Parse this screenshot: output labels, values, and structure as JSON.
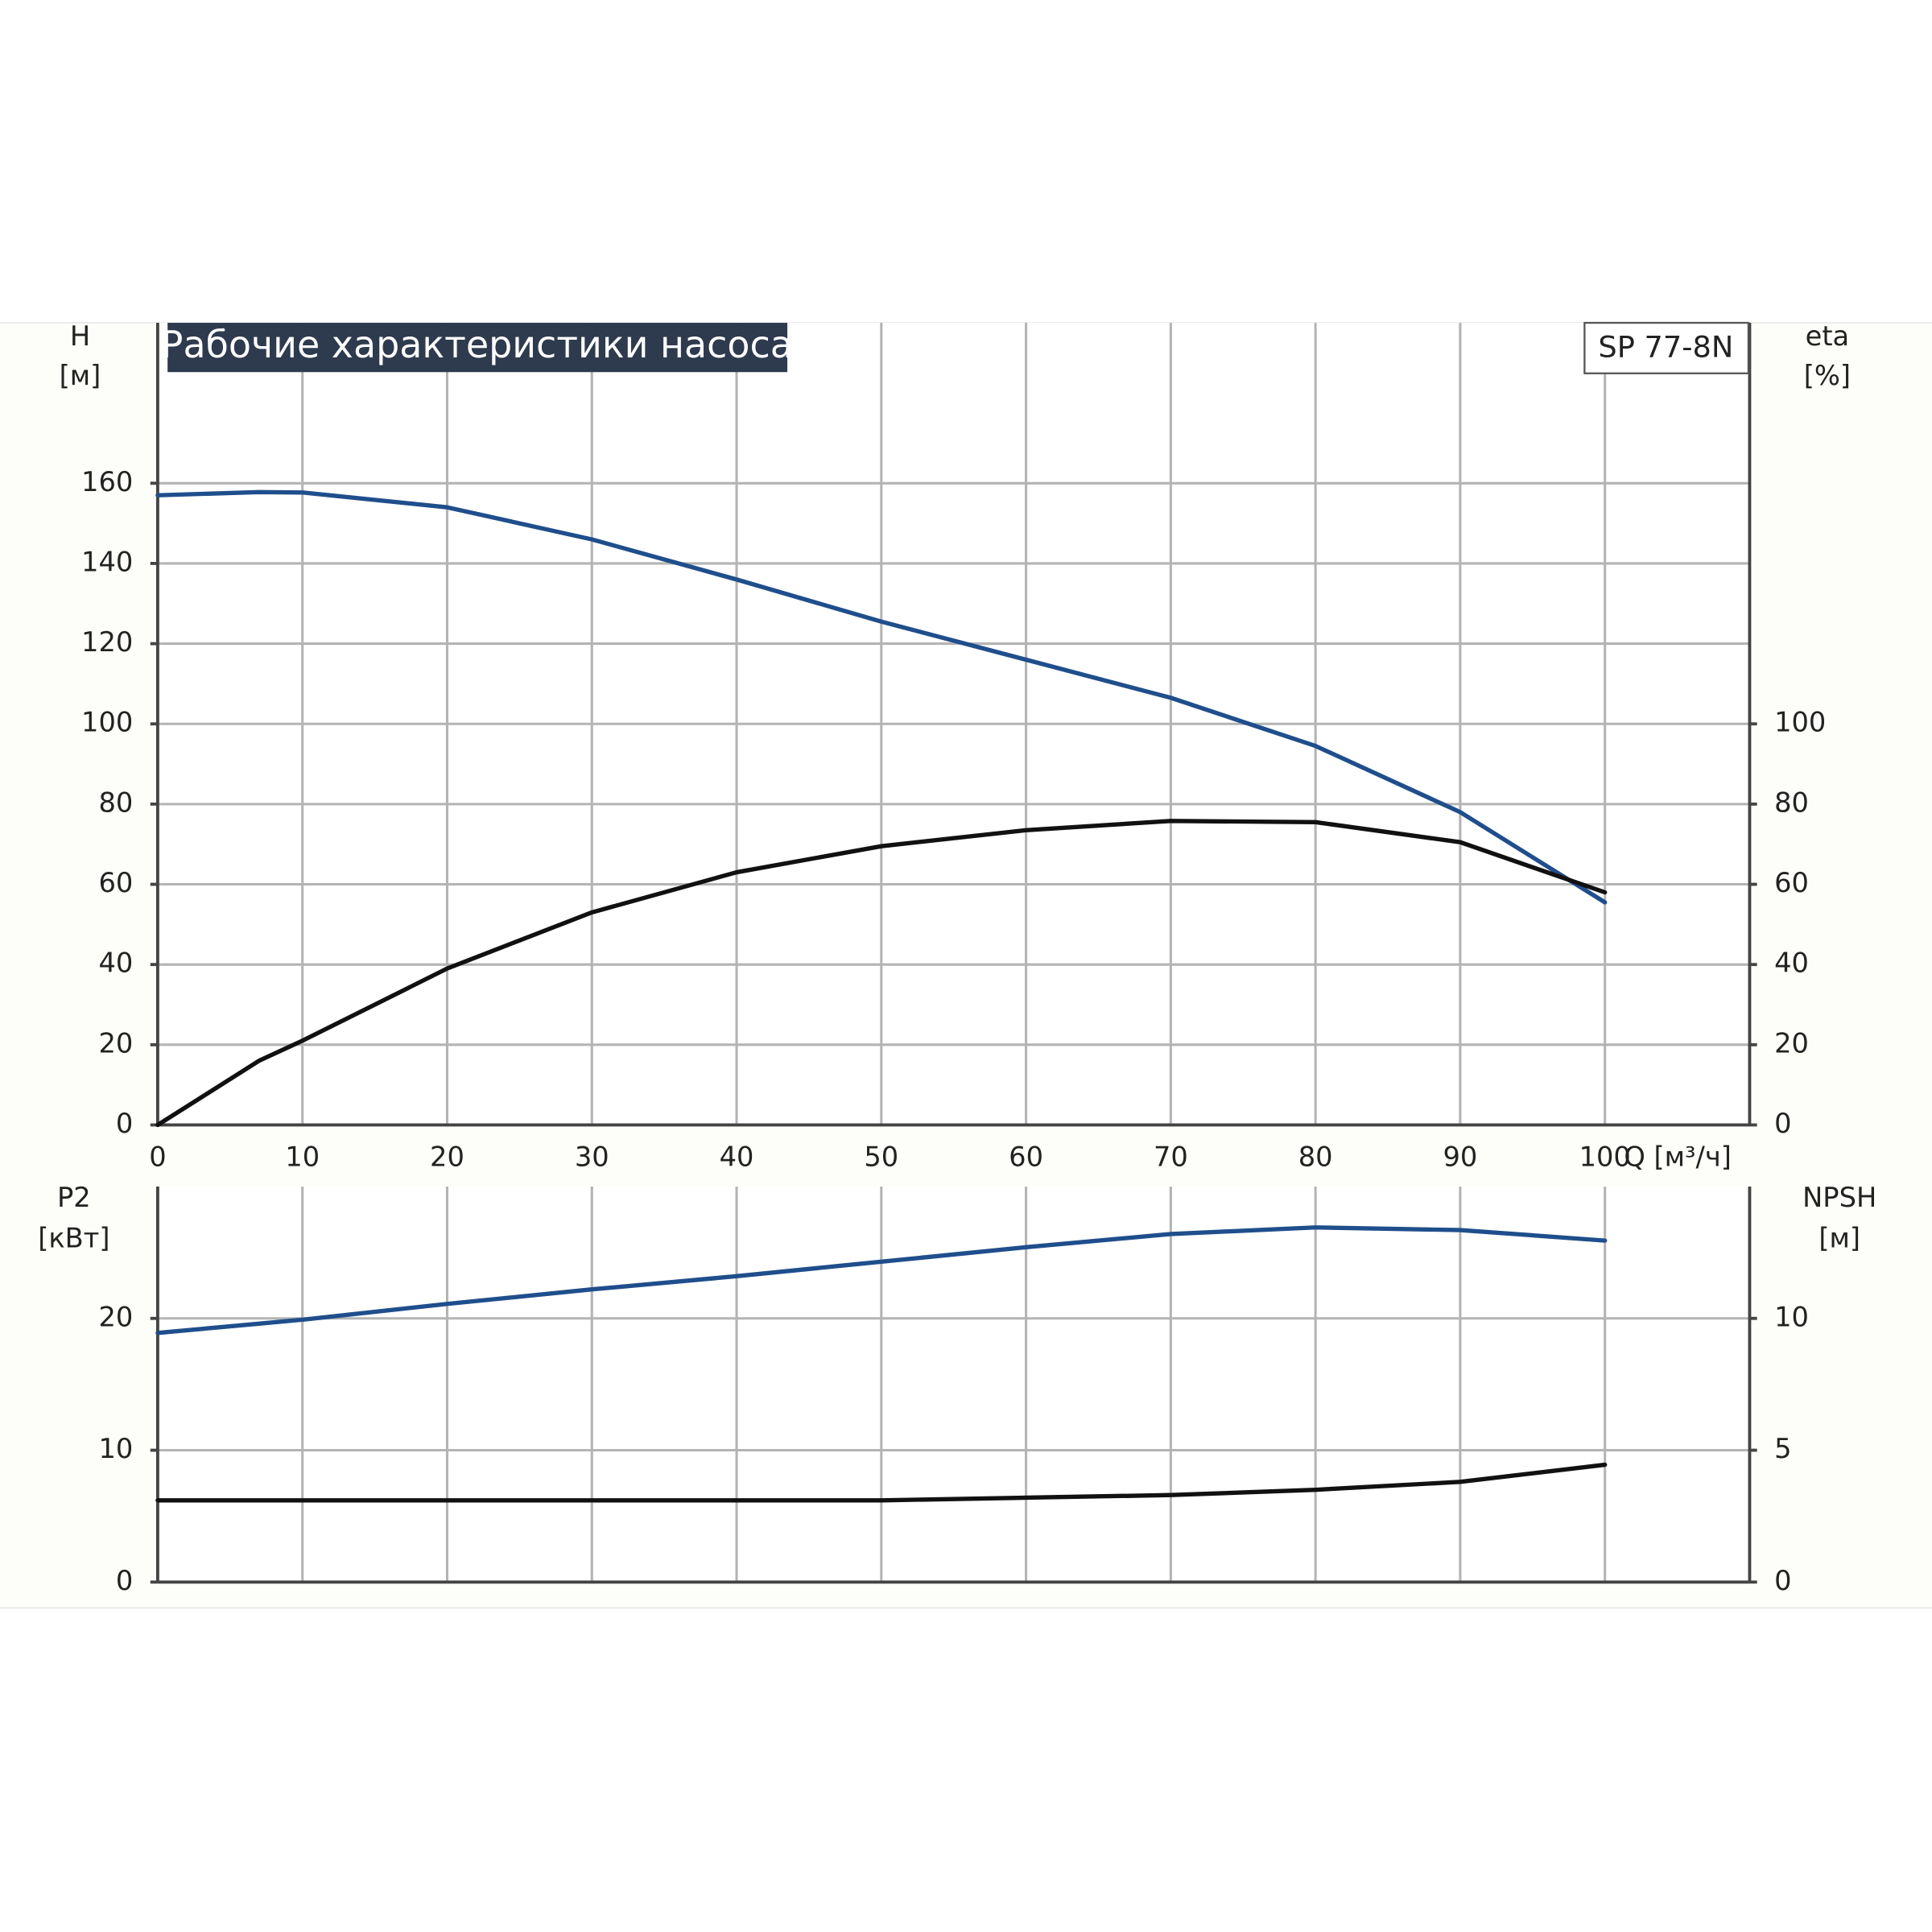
{
  "chart_data": [
    {
      "type": "line",
      "title": "Рабочие характеристики насоса",
      "model": "SP 77-8N",
      "ylabel": [
        "H",
        "[м]"
      ],
      "y2label": [
        "eta",
        "[%]"
      ],
      "xlabel": "Q [м³/ч]",
      "x": [
        0,
        7,
        10,
        20,
        30,
        40,
        50,
        60,
        70,
        80,
        90,
        100
      ],
      "xlim": [
        0,
        110
      ],
      "xticks": [
        0,
        10,
        20,
        30,
        40,
        50,
        60,
        70,
        80,
        90,
        100
      ],
      "ylim": [
        0,
        200
      ],
      "yticks": [
        0,
        20,
        40,
        60,
        80,
        100,
        120,
        140,
        160
      ],
      "y2lim": [
        0,
        200
      ],
      "y2ticks": [
        0,
        20,
        40,
        60,
        80,
        100
      ],
      "grid": true,
      "series": [
        {
          "name": "H",
          "color": "#1f4e8c",
          "values": [
            157,
            157.8,
            157.7,
            154,
            146,
            136,
            125.5,
            116,
            106.5,
            94.5,
            78,
            55.5
          ]
        },
        {
          "name": "eta",
          "color": "#111111",
          "axis": "y2",
          "values": [
            0,
            16,
            21,
            39,
            53,
            63,
            69.5,
            73.5,
            75.8,
            75.5,
            70.5,
            58
          ]
        }
      ]
    },
    {
      "type": "line",
      "ylabel": [
        "P2",
        "[кВт]"
      ],
      "y2label": [
        "NPSH",
        "[м]"
      ],
      "x": [
        0,
        7,
        10,
        20,
        30,
        40,
        50,
        60,
        70,
        80,
        90,
        100
      ],
      "xlim": [
        0,
        110
      ],
      "ylim": [
        0,
        30
      ],
      "yticks": [
        0,
        10,
        20
      ],
      "y2lim": [
        0,
        15
      ],
      "y2ticks": [
        0,
        5,
        10
      ],
      "grid": true,
      "series": [
        {
          "name": "P2",
          "color": "#1f4e8c",
          "values": [
            18.9,
            19.6,
            19.9,
            21.1,
            22.2,
            23.2,
            24.3,
            25.4,
            26.4,
            26.9,
            26.7,
            25.9
          ]
        },
        {
          "name": "NPSH",
          "color": "#111111",
          "axis": "y2",
          "values": [
            3.1,
            3.1,
            3.1,
            3.1,
            3.1,
            3.1,
            3.1,
            3.2,
            3.3,
            3.5,
            3.8,
            4.45
          ]
        }
      ]
    }
  ]
}
